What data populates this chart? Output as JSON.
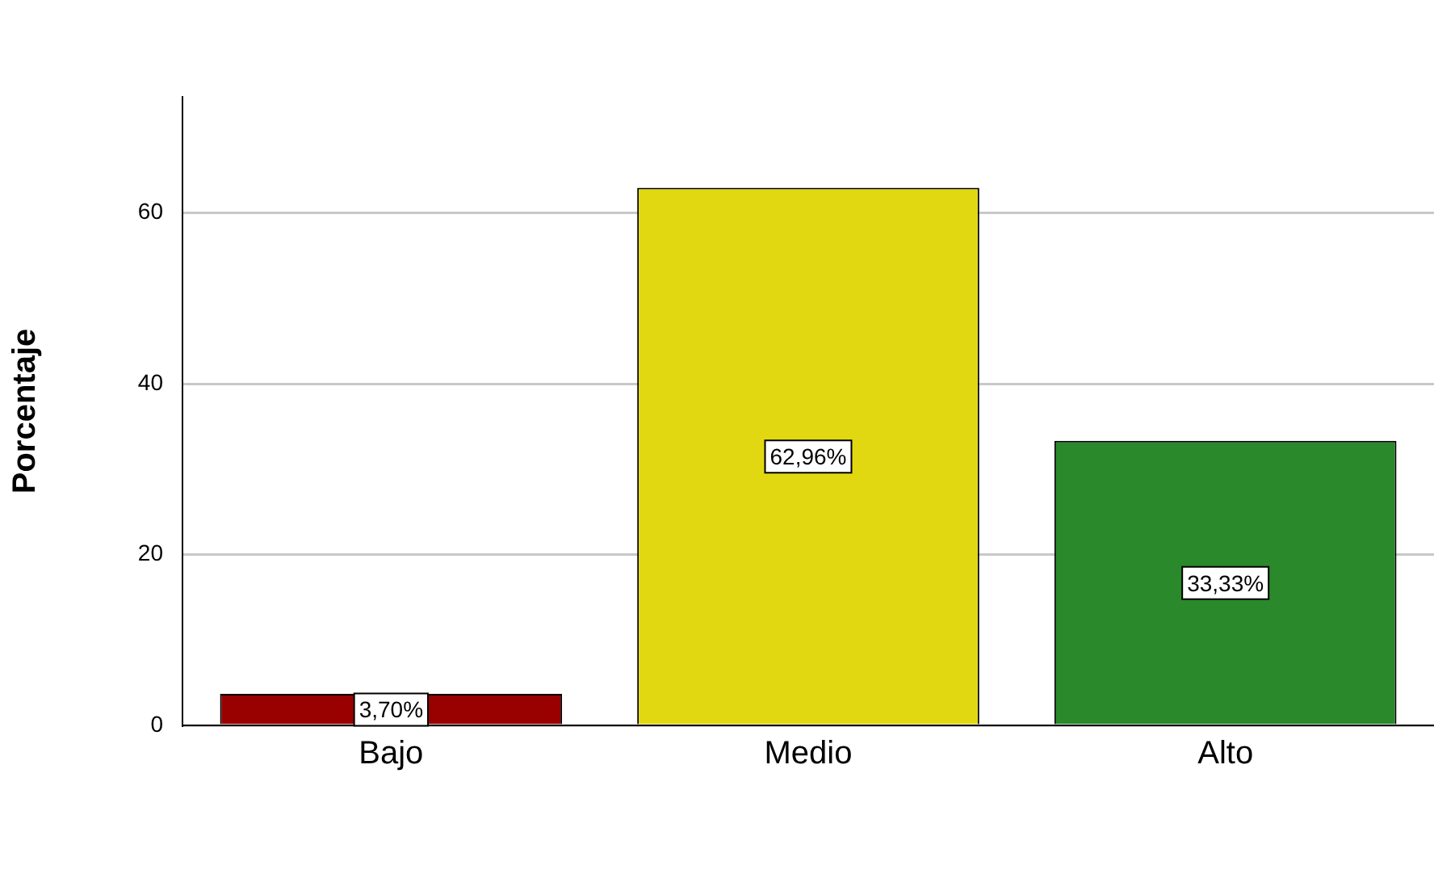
{
  "chart_data": {
    "type": "bar",
    "categories": [
      "Bajo",
      "Medio",
      "Alto"
    ],
    "values": [
      3.7,
      62.96,
      33.33
    ],
    "colors": [
      "#990000",
      "#e2d811",
      "#2a892a"
    ],
    "value_labels": [
      "3,70%",
      "62,96%",
      "33,33%"
    ],
    "ylabel": "Porcentaje",
    "ylim": [
      0,
      73.6
    ],
    "yticks": [
      0,
      20,
      40,
      60
    ],
    "grid": "y"
  }
}
